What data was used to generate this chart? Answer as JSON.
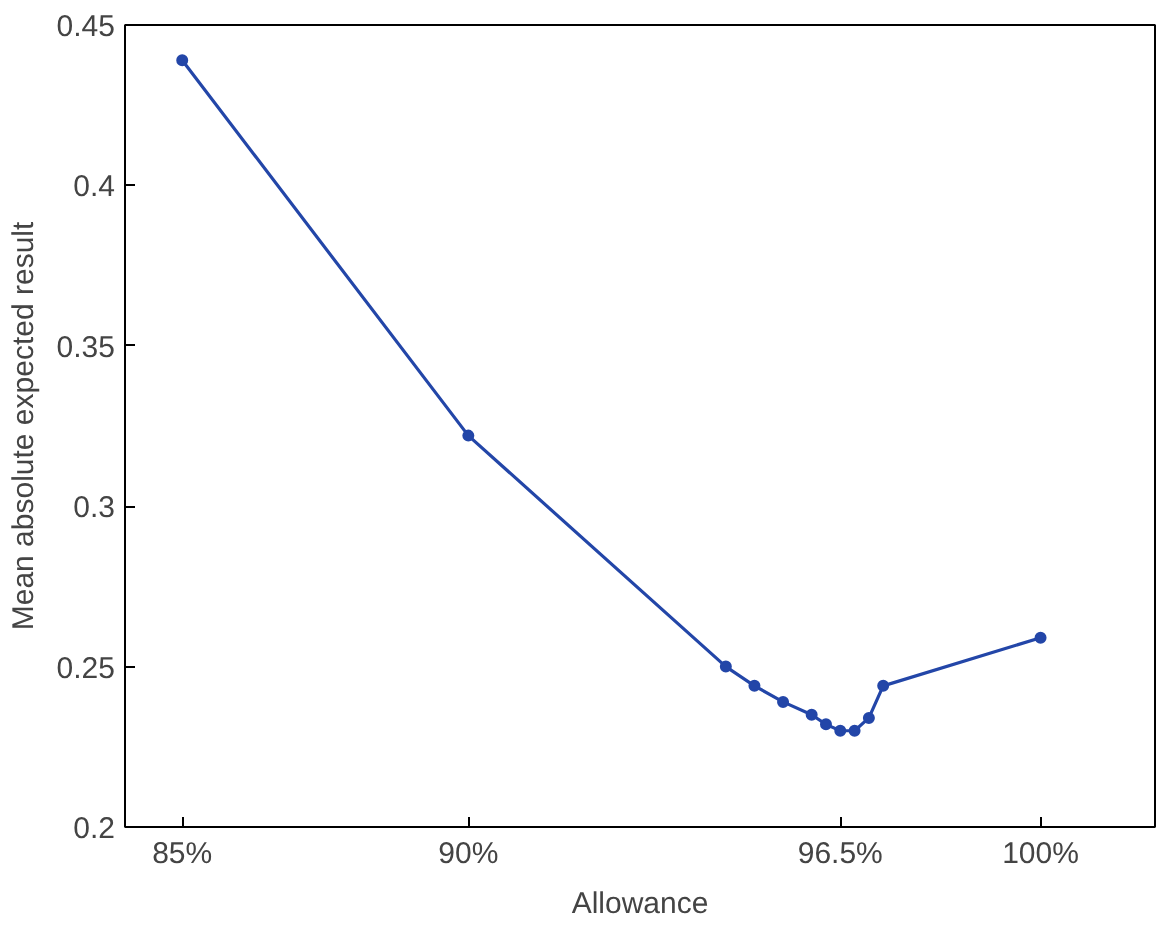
{
  "chart_data": {
    "type": "line",
    "xlabel": "Allowance",
    "ylabel": "Mean absolute expected result",
    "x": [
      85,
      90,
      94.5,
      95,
      95.5,
      96,
      96.25,
      96.5,
      96.75,
      97,
      97.25,
      100
    ],
    "series": [
      {
        "color": "#2346a8",
        "values": [
          0.439,
          0.322,
          0.25,
          0.244,
          0.239,
          0.235,
          0.232,
          0.23,
          0.23,
          0.234,
          0.244,
          0.259
        ]
      }
    ],
    "xlim": [
      84,
      102
    ],
    "ylim": [
      0.2,
      0.45
    ],
    "xticks": [
      {
        "value": 85,
        "label": "85%"
      },
      {
        "value": 90,
        "label": "90%"
      },
      {
        "value": 96.5,
        "label": "96.5%"
      },
      {
        "value": 100,
        "label": "100%"
      }
    ],
    "yticks": [
      0.2,
      0.25,
      0.3,
      0.35,
      0.4,
      0.45
    ],
    "grid": false,
    "marker": "circle",
    "line_style": "solid"
  }
}
